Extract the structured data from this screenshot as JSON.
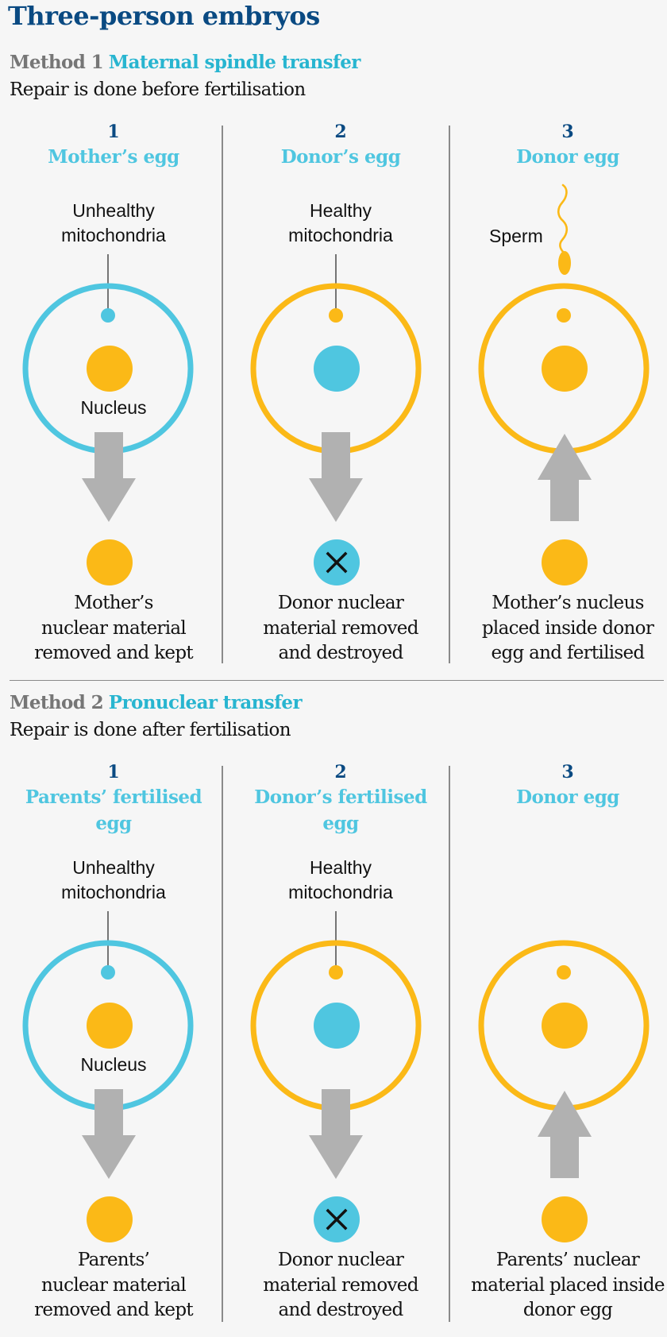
{
  "title": "Three-person embryos",
  "colors": {
    "title_navy": "#0a4a82",
    "cyan": "#4fc6e0",
    "yellow": "#fbb917",
    "arrow_grey": "#b1b1b1",
    "text": "#121212"
  },
  "methods": [
    {
      "label": "Method 1",
      "name": "Maternal spindle transfer",
      "subtitle": "Repair is done before fertilisation",
      "steps": [
        {
          "number": "1",
          "title": [
            "Mother’s egg"
          ],
          "mito_label": [
            "Unhealthy",
            "mitochondria"
          ],
          "nucleus_label": "Nucleus",
          "caption": [
            "Mother’s",
            "nuclear material",
            "removed and kept"
          ]
        },
        {
          "number": "2",
          "title": [
            "Donor’s egg"
          ],
          "mito_label": [
            "Healthy",
            "mitochondria"
          ],
          "caption": [
            "Donor nuclear",
            "material removed",
            "and destroyed"
          ]
        },
        {
          "number": "3",
          "title": [
            "Donor egg"
          ],
          "sperm_label": "Sperm",
          "caption": [
            "Mother’s nucleus",
            "placed inside donor",
            "egg and fertilised"
          ]
        }
      ]
    },
    {
      "label": "Method 2",
      "name": "Pronuclear transfer",
      "subtitle": "Repair is done after fertilisation",
      "steps": [
        {
          "number": "1",
          "title": [
            "Parents’ fertilised",
            "egg"
          ],
          "mito_label": [
            "Unhealthy",
            "mitochondria"
          ],
          "nucleus_label": "Nucleus",
          "caption": [
            "Parents’",
            "nuclear material",
            "removed and kept"
          ]
        },
        {
          "number": "2",
          "title": [
            "Donor’s fertilised",
            "egg"
          ],
          "mito_label": [
            "Healthy",
            "mitochondria"
          ],
          "caption": [
            "Donor nuclear",
            "material removed",
            "and destroyed"
          ]
        },
        {
          "number": "3",
          "title": [
            "Donor egg"
          ],
          "caption": [
            "Parents’ nuclear",
            "material placed inside",
            "donor egg"
          ]
        }
      ]
    }
  ]
}
